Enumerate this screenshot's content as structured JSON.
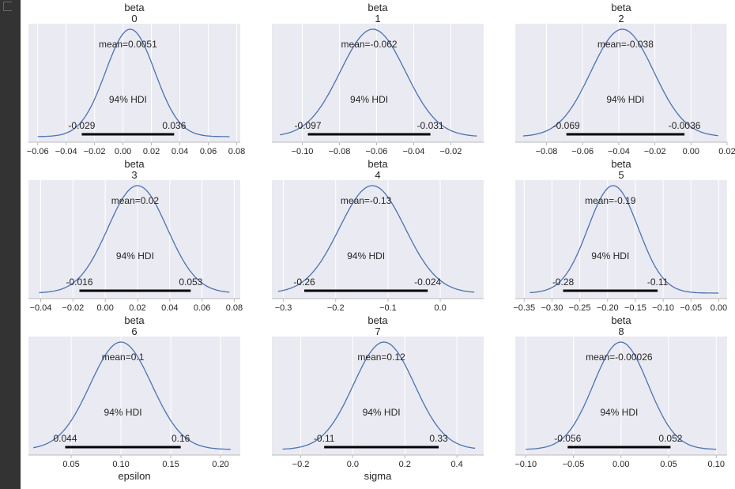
{
  "chart_data": [
    {
      "type": "line",
      "title": [
        "beta",
        "0"
      ],
      "mean_label": "mean=0.0051",
      "mean": 0.0051,
      "hdi_label": "94% HDI",
      "hdi": [
        -0.029,
        0.036
      ],
      "hdi_text": [
        "-0.029",
        "0.036"
      ],
      "xlim": [
        -0.0665,
        0.0825
      ],
      "curve_range": [
        -0.06,
        0.075
      ],
      "xticks": [
        -0.06,
        -0.04,
        -0.02,
        0.0,
        0.02,
        0.04,
        0.06,
        0.08
      ],
      "xtick_labels": [
        "−0.06",
        "−0.04",
        "−0.02",
        "0.00",
        "0.02",
        "0.04",
        "0.06",
        "0.08"
      ],
      "xlabel": ""
    },
    {
      "type": "line",
      "title": [
        "beta",
        "1"
      ],
      "mean_label": "mean=-0.062",
      "mean": -0.062,
      "hdi_label": "94% HDI",
      "hdi": [
        -0.097,
        -0.031
      ],
      "hdi_text": [
        "-0.097",
        "-0.031"
      ],
      "xlim": [
        -0.1164,
        -0.0023
      ],
      "curve_range": [
        -0.112,
        -0.006
      ],
      "xticks": [
        -0.1,
        -0.08,
        -0.06,
        -0.04,
        -0.02
      ],
      "xtick_labels": [
        "−0.10",
        "−0.08",
        "−0.06",
        "−0.04",
        "−0.02"
      ],
      "xlabel": ""
    },
    {
      "type": "line",
      "title": [
        "beta",
        "2"
      ],
      "mean_label": "mean=-0.038",
      "mean": -0.038,
      "hdi_label": "94% HDI",
      "hdi": [
        -0.069,
        -0.0036
      ],
      "hdi_text": [
        "-0.069",
        "-0.0036"
      ],
      "xlim": [
        -0.0973,
        0.02
      ],
      "curve_range": [
        -0.093,
        0.015
      ],
      "xticks": [
        -0.08,
        -0.06,
        -0.04,
        -0.02,
        0.0,
        0.02
      ],
      "xtick_labels": [
        "−0.08",
        "−0.06",
        "−0.04",
        "−0.02",
        "0.00",
        "0.02"
      ],
      "xlabel": ""
    },
    {
      "type": "line",
      "title": [
        "beta",
        "3"
      ],
      "mean_label": "mean=0.02",
      "mean": 0.02,
      "hdi_label": "94% HDI",
      "hdi": [
        -0.016,
        0.053
      ],
      "hdi_text": [
        "-0.016",
        "0.053"
      ],
      "xlim": [
        -0.0476,
        0.0837
      ],
      "curve_range": [
        -0.041,
        0.077
      ],
      "xticks": [
        -0.04,
        -0.02,
        0.0,
        0.02,
        0.04,
        0.06,
        0.08
      ],
      "xtick_labels": [
        "−0.04",
        "−0.02",
        "0.00",
        "0.02",
        "0.04",
        "0.06",
        "0.08"
      ],
      "xlabel": ""
    },
    {
      "type": "line",
      "title": [
        "beta",
        "4"
      ],
      "mean_label": "mean=-0.13",
      "mean": -0.13,
      "hdi_label": "94% HDI",
      "hdi": [
        -0.26,
        -0.024
      ],
      "hdi_text": [
        "-0.26",
        "-0.024"
      ],
      "xlim": [
        -0.322,
        0.083
      ],
      "curve_range": [
        -0.31,
        0.065
      ],
      "xticks": [
        -0.3,
        -0.2,
        -0.1,
        0.0
      ],
      "xtick_labels": [
        "−0.3",
        "−0.2",
        "−0.1",
        "0.0"
      ],
      "xlabel": ""
    },
    {
      "type": "line",
      "title": [
        "beta",
        "5"
      ],
      "mean_label": "mean=-0.19",
      "mean": -0.19,
      "hdi_label": "94% HDI",
      "hdi": [
        -0.28,
        -0.11
      ],
      "hdi_text": [
        "-0.28",
        "-0.11"
      ],
      "xlim": [
        -0.366,
        0.015
      ],
      "curve_range": [
        -0.34,
        0.0
      ],
      "xticks": [
        -0.35,
        -0.3,
        -0.25,
        -0.2,
        -0.15,
        -0.1,
        -0.05,
        0.0
      ],
      "xtick_labels": [
        "−0.35",
        "−0.30",
        "−0.25",
        "−0.20",
        "−0.15",
        "−0.10",
        "−0.05",
        "0.00"
      ],
      "xlabel": ""
    },
    {
      "type": "line",
      "title": [
        "beta",
        "6"
      ],
      "mean_label": "mean=0.1",
      "mean": 0.1,
      "hdi_label": "94% HDI",
      "hdi": [
        0.044,
        0.16
      ],
      "hdi_text": [
        "0.044",
        "0.16"
      ],
      "xlim": [
        0.0071,
        0.2198
      ],
      "curve_range": [
        0.012,
        0.21
      ],
      "xticks": [
        0.05,
        0.1,
        0.15,
        0.2
      ],
      "xtick_labels": [
        "0.05",
        "0.10",
        "0.15",
        "0.20"
      ],
      "xlabel": "epsilon"
    },
    {
      "type": "line",
      "title": [
        "beta",
        "7"
      ],
      "mean_label": "mean=0.12",
      "mean": 0.12,
      "hdi_label": "94% HDI",
      "hdi": [
        -0.11,
        0.33
      ],
      "hdi_text": [
        "-0.11",
        "0.33"
      ],
      "xlim": [
        -0.311,
        0.503
      ],
      "curve_range": [
        -0.27,
        0.47
      ],
      "xticks": [
        -0.2,
        0.0,
        0.2,
        0.4
      ],
      "xtick_labels": [
        "−0.2",
        "0.0",
        "0.2",
        "0.4"
      ],
      "xlabel": "sigma"
    },
    {
      "type": "line",
      "title": [
        "beta",
        "8"
      ],
      "mean_label": "mean=-0.00026",
      "mean": -0.00026,
      "hdi_label": "94% HDI",
      "hdi": [
        -0.056,
        0.052
      ],
      "hdi_text": [
        "-0.056",
        "0.052"
      ],
      "xlim": [
        -0.111,
        0.1114
      ],
      "curve_range": [
        -0.1,
        0.1
      ],
      "xticks": [
        -0.1,
        -0.05,
        0.0,
        0.05,
        0.1
      ],
      "xtick_labels": [
        "−0.10",
        "−0.05",
        "0.00",
        "0.05",
        "0.10"
      ],
      "xlabel": ""
    }
  ],
  "colors": {
    "line": "#4C72B0",
    "axes_bg": "#EAEAF2",
    "grid": "#FFFFFF",
    "hdi_bar": "#000000",
    "sidebar": "#333333"
  },
  "grid": true
}
